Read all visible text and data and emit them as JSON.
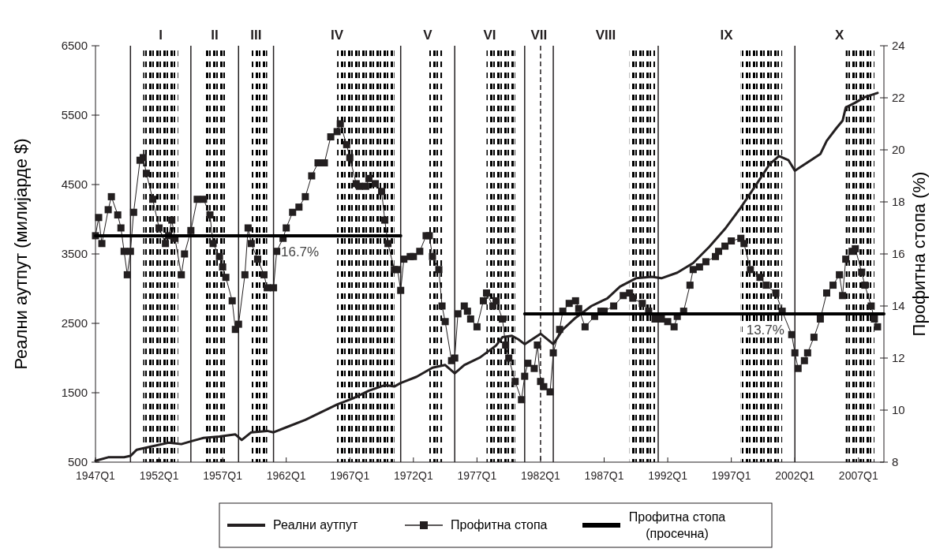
{
  "chart_data": {
    "type": "line",
    "ylabel": "Реални аутпут (милијарде $)",
    "y2label": "Профитна стопа (%)",
    "xlim": [
      "1947-01",
      "2009-01"
    ],
    "xticks": [
      {
        "value": "1947-01",
        "label": "1947Q1"
      },
      {
        "value": "1952-01",
        "label": "1952Q1"
      },
      {
        "value": "1957-01",
        "label": "1957Q1"
      },
      {
        "value": "1962-01",
        "label": "1962Q1"
      },
      {
        "value": "1967-01",
        "label": "1967Q1"
      },
      {
        "value": "1972-01",
        "label": "1972Q1"
      },
      {
        "value": "1977-01",
        "label": "1977Q1"
      },
      {
        "value": "1982-01",
        "label": "1982Q1"
      },
      {
        "value": "1987-01",
        "label": "1987Q1"
      },
      {
        "value": "1992-01",
        "label": "1992Q1"
      },
      {
        "value": "1997-01",
        "label": "1997Q1"
      },
      {
        "value": "2002-01",
        "label": "2002Q1"
      },
      {
        "value": "2007-01",
        "label": "2007Q1"
      }
    ],
    "ylim": [
      500,
      6500
    ],
    "yticks": [
      500,
      1500,
      2500,
      3500,
      4500,
      5500,
      6500
    ],
    "y2lim": [
      8,
      24
    ],
    "y2ticks": [
      8,
      10,
      12,
      14,
      16,
      18,
      20,
      22,
      24
    ],
    "grid": false,
    "legend": "bottom",
    "series": [
      {
        "name": "Реални аутпут",
        "color": "#231f20",
        "marker": "none",
        "x": [
          "1947-01",
          "1948-01",
          "1949-04",
          "1949-10",
          "1950-04",
          "1951-07",
          "1952-10",
          "1953-10",
          "1954-07",
          "1955-07",
          "1956-10",
          "1958-01",
          "1958-07",
          "1959-04",
          "1960-07",
          "1961-01",
          "1962-04",
          "1963-07",
          "1964-10",
          "1966-01",
          "1967-04",
          "1968-07",
          "1969-10",
          "1970-07",
          "1971-01",
          "1972-04",
          "1973-07",
          "1974-07",
          "1974-10",
          "1975-04",
          "1976-01",
          "1977-04",
          "1978-07",
          "1979-01",
          "1979-10",
          "1980-04",
          "1980-10",
          "1982-01",
          "1983-01",
          "1983-10",
          "1984-10",
          "1986-01",
          "1987-04",
          "1988-04",
          "1989-07",
          "1990-10",
          "1991-07",
          "1992-10",
          "1994-01",
          "1995-04",
          "1996-07",
          "1997-10",
          "1999-01",
          "2000-01",
          "2000-10",
          "2001-07",
          "2002-01",
          "2002-10",
          "2003-04",
          "2004-01",
          "2004-07",
          "2005-04",
          "2005-10",
          "2006-01",
          "2006-10",
          "2007-07",
          "2008-07"
        ],
        "values": [
          520,
          570,
          570,
          590,
          680,
          730,
          780,
          760,
          800,
          850,
          870,
          900,
          820,
          930,
          950,
          930,
          1020,
          1110,
          1220,
          1330,
          1420,
          1530,
          1610,
          1590,
          1640,
          1730,
          1860,
          1900,
          1860,
          1780,
          1900,
          2010,
          2180,
          2300,
          2320,
          2270,
          2200,
          2350,
          2200,
          2410,
          2580,
          2750,
          2860,
          3030,
          3150,
          3170,
          3150,
          3230,
          3370,
          3600,
          3860,
          4170,
          4510,
          4790,
          4910,
          4850,
          4700,
          4790,
          4850,
          4940,
          5130,
          5310,
          5420,
          5610,
          5680,
          5760,
          5820
        ]
      },
      {
        "name": "Профитна стопа",
        "color": "#231f20",
        "marker": "square",
        "axis": "y2",
        "x": [
          "1947-01",
          "1947-04",
          "1947-07",
          "1948-01",
          "1948-04",
          "1948-10",
          "1949-01",
          "1949-04",
          "1949-07",
          "1949-10",
          "1950-01",
          "1950-07",
          "1950-10",
          "1951-01",
          "1951-07",
          "1952-01",
          "1952-07",
          "1952-10",
          "1953-01",
          "1953-04",
          "1953-10",
          "1954-01",
          "1954-07",
          "1955-01",
          "1955-07",
          "1956-01",
          "1956-04",
          "1956-10",
          "1957-01",
          "1957-04",
          "1957-10",
          "1958-01",
          "1958-04",
          "1958-10",
          "1959-01",
          "1959-04",
          "1959-10",
          "1960-04",
          "1960-07",
          "1961-01",
          "1961-04",
          "1961-10",
          "1962-01",
          "1962-07",
          "1963-01",
          "1963-07",
          "1964-01",
          "1964-07",
          "1965-01",
          "1965-07",
          "1966-01",
          "1966-04",
          "1966-10",
          "1967-01",
          "1967-07",
          "1967-10",
          "1968-04",
          "1968-07",
          "1969-01",
          "1969-07",
          "1969-10",
          "1970-01",
          "1970-07",
          "1970-10",
          "1971-01",
          "1971-04",
          "1971-10",
          "1972-01",
          "1972-07",
          "1973-01",
          "1973-04",
          "1973-07",
          "1974-01",
          "1974-04",
          "1974-07",
          "1975-01",
          "1975-04",
          "1975-07",
          "1976-01",
          "1976-04",
          "1976-07",
          "1977-01",
          "1977-07",
          "1977-10",
          "1978-04",
          "1978-07",
          "1979-01",
          "1979-04",
          "1979-07",
          "1980-01",
          "1980-07",
          "1980-10",
          "1981-01",
          "1981-07",
          "1981-10",
          "1982-01",
          "1982-04",
          "1982-10",
          "1983-01",
          "1983-07",
          "1983-10",
          "1984-04",
          "1984-10",
          "1985-01",
          "1985-07",
          "1986-04",
          "1986-10",
          "1987-01",
          "1987-10",
          "1988-07",
          "1989-01",
          "1989-04",
          "1990-01",
          "1990-07",
          "1991-01",
          "1991-07",
          "1992-01",
          "1992-07",
          "1992-10",
          "1993-04",
          "1993-10",
          "1994-01",
          "1994-07",
          "1995-01",
          "1995-10",
          "1996-01",
          "1996-07",
          "1997-01",
          "1997-10",
          "1998-01",
          "1998-07",
          "1999-04",
          "1999-10",
          "2000-07",
          "2001-01",
          "2001-10",
          "2002-01",
          "2002-04",
          "2002-10",
          "2003-01",
          "2003-07",
          "2004-01",
          "2004-07",
          "2005-01",
          "2005-07",
          "2005-10",
          "2006-01",
          "2006-07",
          "2006-10",
          "2007-04",
          "2007-07",
          "2008-01",
          "2008-04",
          "2008-07"
        ],
        "values": [
          16.7,
          17.4,
          16.4,
          17.7,
          18.2,
          17.5,
          17.0,
          16.1,
          15.2,
          16.1,
          17.6,
          19.6,
          19.7,
          19.1,
          18.1,
          17.0,
          16.4,
          16.7,
          17.3,
          16.6,
          15.2,
          16.0,
          16.9,
          18.1,
          18.1,
          17.5,
          16.4,
          15.9,
          15.5,
          15.1,
          14.2,
          13.1,
          13.3,
          15.2,
          17.0,
          16.4,
          15.8,
          15.2,
          14.7,
          14.7,
          16.1,
          16.6,
          17.0,
          17.6,
          17.8,
          18.2,
          19.0,
          19.5,
          19.5,
          20.5,
          20.7,
          21.0,
          20.2,
          19.7,
          18.7,
          18.6,
          18.6,
          18.9,
          18.7,
          18.4,
          17.3,
          16.4,
          15.4,
          15.4,
          14.6,
          15.8,
          15.9,
          15.9,
          16.1,
          16.7,
          16.7,
          15.9,
          15.4,
          14.0,
          13.4,
          11.9,
          12.0,
          13.7,
          14.0,
          13.8,
          13.5,
          13.2,
          14.2,
          14.5,
          14.0,
          14.2,
          13.5,
          12.5,
          12.0,
          11.1,
          10.4,
          11.3,
          11.8,
          11.6,
          12.5,
          11.1,
          10.9,
          10.7,
          12.2,
          13.1,
          13.8,
          14.1,
          14.2,
          13.9,
          13.2,
          13.6,
          13.8,
          13.8,
          14.0,
          14.4,
          14.5,
          14.3,
          14.1,
          13.8,
          13.5,
          13.5,
          13.4,
          13.2,
          13.6,
          13.8,
          14.8,
          15.4,
          15.5,
          15.7,
          15.9,
          16.1,
          16.3,
          16.5,
          16.6,
          16.4,
          15.4,
          15.1,
          14.8,
          14.5,
          13.8,
          12.9,
          12.2,
          11.6,
          11.9,
          12.2,
          12.8,
          13.5,
          14.5,
          14.8,
          15.2,
          14.4,
          15.8,
          16.1,
          16.2,
          15.3,
          14.8,
          14.0,
          13.5,
          13.2
        ]
      },
      {
        "name": "Профитна стопа (просечна)",
        "color": "#000000",
        "marker": "none",
        "axis": "y2",
        "x": [
          "1947-01",
          "1971-01",
          "1975-01",
          "1980-10",
          "2009-01"
        ],
        "values": [
          16.7,
          16.7,
          null,
          13.7,
          13.7
        ]
      }
    ],
    "ref_lines": [
      {
        "axis": "x",
        "value": "1949-10",
        "color": "#231f20"
      },
      {
        "axis": "x",
        "value": "1954-07",
        "color": "#231f20"
      },
      {
        "axis": "x",
        "value": "1958-04",
        "color": "#231f20"
      },
      {
        "axis": "x",
        "value": "1961-01",
        "color": "#231f20"
      },
      {
        "axis": "x",
        "value": "1971-01",
        "color": "#231f20"
      },
      {
        "axis": "x",
        "value": "1975-04",
        "color": "#231f20"
      },
      {
        "axis": "x",
        "value": "1980-10",
        "color": "#231f20"
      },
      {
        "axis": "x",
        "value": "1982-01",
        "color": "#231f20",
        "line_style": "dashed"
      },
      {
        "axis": "x",
        "value": "1983-01",
        "color": "#231f20"
      },
      {
        "axis": "x",
        "value": "1991-04",
        "color": "#231f20"
      },
      {
        "axis": "x",
        "value": "2002-01",
        "color": "#231f20"
      }
    ],
    "bands": [
      {
        "axis": "x",
        "from": "1950-10",
        "to": "1953-07"
      },
      {
        "axis": "x",
        "from": "1955-07",
        "to": "1957-04"
      },
      {
        "axis": "x",
        "from": "1959-04",
        "to": "1960-07"
      },
      {
        "axis": "x",
        "from": "1966-01",
        "to": "1970-07"
      },
      {
        "axis": "x",
        "from": "1973-04",
        "to": "1974-04"
      },
      {
        "axis": "x",
        "from": "1977-10",
        "to": "1980-01"
      },
      {
        "axis": "x",
        "from": "1989-01",
        "to": "1991-01"
      },
      {
        "axis": "x",
        "from": "1997-10",
        "to": "2001-01"
      },
      {
        "axis": "x",
        "from": "2006-01",
        "to": "2008-04"
      }
    ],
    "annotations": [
      "I",
      "II",
      "III",
      "IV",
      "V",
      "VI",
      "VII",
      "VIII",
      "IX",
      "X",
      "16.7%",
      "13.7%"
    ]
  }
}
